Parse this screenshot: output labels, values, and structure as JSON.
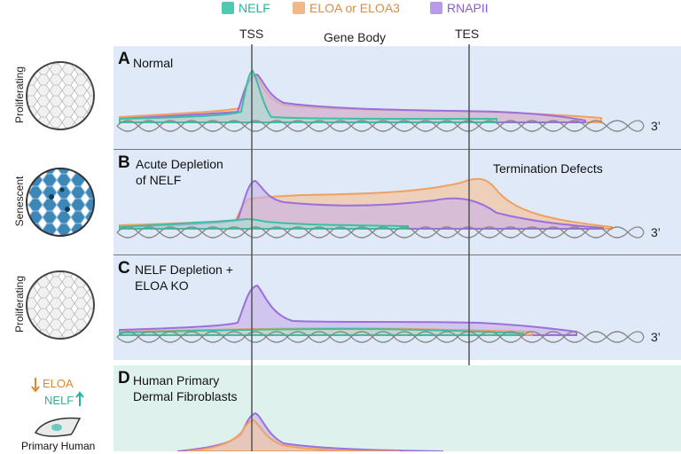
{
  "legend": {
    "nelf": {
      "label": "NELF",
      "color": "#4fc9b0"
    },
    "eloa": {
      "label": "ELOA or ELOA3",
      "color": "#f0a060"
    },
    "rnapii": {
      "label": "RNAPII",
      "color": "#9b6fdc"
    }
  },
  "axis": {
    "tss": "TSS",
    "gene_body": "Gene Body",
    "tes": "TES",
    "three_prime": "3’"
  },
  "panels": [
    {
      "letter": "A",
      "text": "Normal",
      "state": "Proliferating"
    },
    {
      "letter": "B",
      "text": "Acute Depletion\nof NELF",
      "annotation": "Termination Defects",
      "state": "Senescent"
    },
    {
      "letter": "C",
      "text": "NELF Depletion +\nELOA KO",
      "state": "Proliferating"
    },
    {
      "letter": "D",
      "text": "Human Primary\nDermal Fibroblasts"
    }
  ],
  "panel_d_side": {
    "eloa": "ELOA",
    "nelf": "NELF",
    "cell_label": "Primary Human"
  },
  "colors": {
    "panel_bg_blue": "#dfe9f8",
    "panel_bg_green": "#dff1ec"
  }
}
